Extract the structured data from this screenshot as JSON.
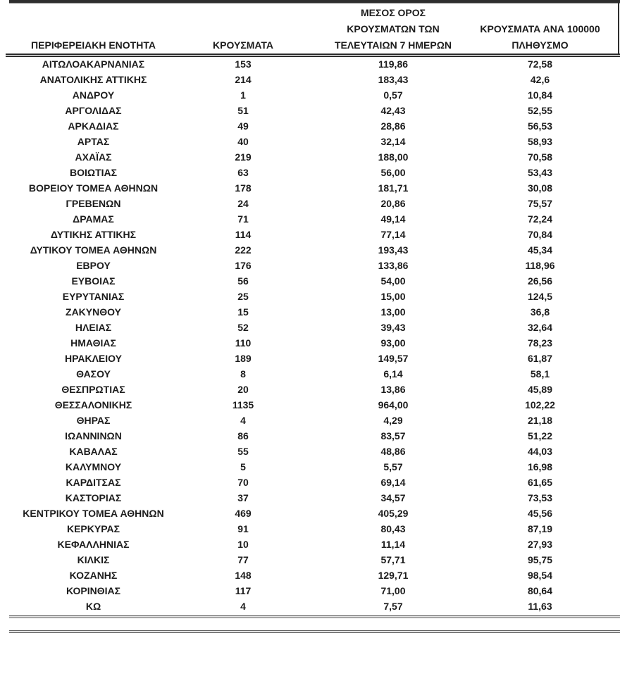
{
  "document": {
    "colors": {
      "text": "#1c1c1c",
      "rule_dark": "#2e2e2e",
      "rule_grey": "#636363",
      "background": "#ffffff"
    },
    "table": {
      "columns": [
        "ΠΕΡΙΦΕΡΕΙΑΚΗ ΕΝΟΤΗΤΑ",
        "ΚΡΟΥΣΜΑΤΑ",
        "ΜΕΣΟΣ ΟΡΟΣ\nΚΡΟΥΣΜΑΤΩΝ ΤΩΝ\nΤΕΛΕΥΤΑΙΩΝ 7 ΗΜΕΡΩΝ",
        "ΚΡΟΥΣΜΑΤΑ ΑΝΑ 100000\nΠΛΗΘΥΣΜΟ"
      ],
      "rows": [
        [
          "ΑΙΤΩΛΟΑΚΑΡΝΑΝΙΑΣ",
          "153",
          "119,86",
          "72,58"
        ],
        [
          "ΑΝΑΤΟΛΙΚΗΣ ΑΤΤΙΚΗΣ",
          "214",
          "183,43",
          "42,6"
        ],
        [
          "ΑΝΔΡΟΥ",
          "1",
          "0,57",
          "10,84"
        ],
        [
          "ΑΡΓΟΛΙΔΑΣ",
          "51",
          "42,43",
          "52,55"
        ],
        [
          "ΑΡΚΑΔΙΑΣ",
          "49",
          "28,86",
          "56,53"
        ],
        [
          "ΑΡΤΑΣ",
          "40",
          "32,14",
          "58,93"
        ],
        [
          "ΑΧΑΪΑΣ",
          "219",
          "188,00",
          "70,58"
        ],
        [
          "ΒΟΙΩΤΙΑΣ",
          "63",
          "56,00",
          "53,43"
        ],
        [
          "ΒΟΡΕΙΟΥ ΤΟΜΕΑ ΑΘΗΝΩΝ",
          "178",
          "181,71",
          "30,08"
        ],
        [
          "ΓΡΕΒΕΝΩΝ",
          "24",
          "20,86",
          "75,57"
        ],
        [
          "ΔΡΑΜΑΣ",
          "71",
          "49,14",
          "72,24"
        ],
        [
          "ΔΥΤΙΚΗΣ ΑΤΤΙΚΗΣ",
          "114",
          "77,14",
          "70,84"
        ],
        [
          "ΔΥΤΙΚΟΥ ΤΟΜΕΑ ΑΘΗΝΩΝ",
          "222",
          "193,43",
          "45,34"
        ],
        [
          "ΕΒΡΟΥ",
          "176",
          "133,86",
          "118,96"
        ],
        [
          "ΕΥΒΟΙΑΣ",
          "56",
          "54,00",
          "26,56"
        ],
        [
          "ΕΥΡΥΤΑΝΙΑΣ",
          "25",
          "15,00",
          "124,5"
        ],
        [
          "ΖΑΚΥΝΘΟΥ",
          "15",
          "13,00",
          "36,8"
        ],
        [
          "ΗΛΕΙΑΣ",
          "52",
          "39,43",
          "32,64"
        ],
        [
          "ΗΜΑΘΙΑΣ",
          "110",
          "93,00",
          "78,23"
        ],
        [
          "ΗΡΑΚΛΕΙΟΥ",
          "189",
          "149,57",
          "61,87"
        ],
        [
          "ΘΑΣΟΥ",
          "8",
          "6,14",
          "58,1"
        ],
        [
          "ΘΕΣΠΡΩΤΙΑΣ",
          "20",
          "13,86",
          "45,89"
        ],
        [
          "ΘΕΣΣΑΛΟΝΙΚΗΣ",
          "1135",
          "964,00",
          "102,22"
        ],
        [
          "ΘΗΡΑΣ",
          "4",
          "4,29",
          "21,18"
        ],
        [
          "ΙΩΑΝΝΙΝΩΝ",
          "86",
          "83,57",
          "51,22"
        ],
        [
          "ΚΑΒΑΛΑΣ",
          "55",
          "48,86",
          "44,03"
        ],
        [
          "ΚΑΛΥΜΝΟΥ",
          "5",
          "5,57",
          "16,98"
        ],
        [
          "ΚΑΡΔΙΤΣΑΣ",
          "70",
          "69,14",
          "61,65"
        ],
        [
          "ΚΑΣΤΟΡΙΑΣ",
          "37",
          "34,57",
          "73,53"
        ],
        [
          "ΚΕΝΤΡΙΚΟΥ ΤΟΜΕΑ ΑΘΗΝΩΝ",
          "469",
          "405,29",
          "45,56"
        ],
        [
          "ΚΕΡΚΥΡΑΣ",
          "91",
          "80,43",
          "87,19"
        ],
        [
          "ΚΕΦΑΛΛΗΝΙΑΣ",
          "10",
          "11,14",
          "27,93"
        ],
        [
          "ΚΙΛΚΙΣ",
          "77",
          "57,71",
          "95,75"
        ],
        [
          "ΚΟΖΑΝΗΣ",
          "148",
          "129,71",
          "98,54"
        ],
        [
          "ΚΟΡΙΝΘΙΑΣ",
          "117",
          "71,00",
          "80,64"
        ],
        [
          "ΚΩ",
          "4",
          "7,57",
          "11,63"
        ]
      ],
      "cell_names": [
        "region-cell",
        "cases-cell",
        "avg7days-cell",
        "per100k-cell"
      ]
    }
  }
}
